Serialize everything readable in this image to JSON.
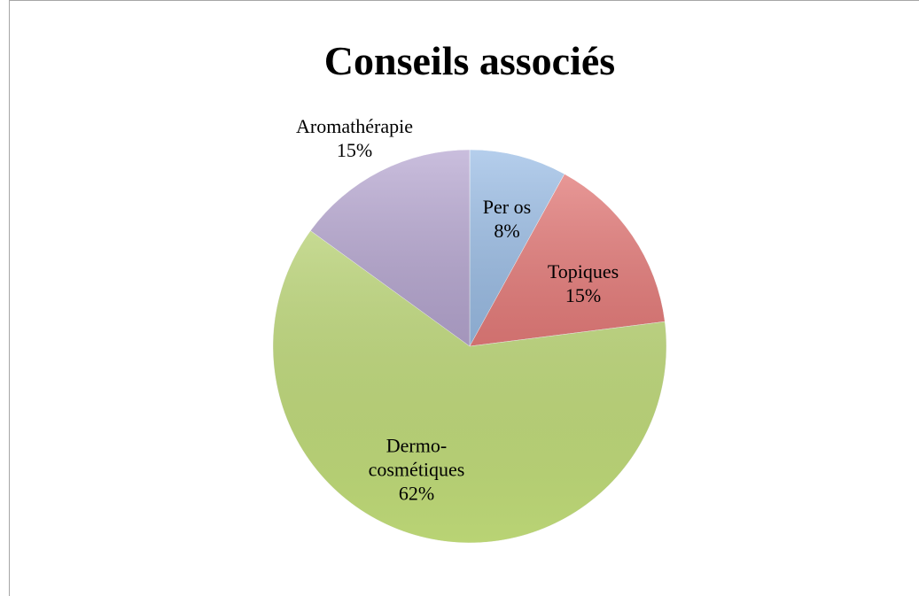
{
  "chart_data": {
    "type": "pie",
    "title": "Conseils associés",
    "categories": [
      "Per os",
      "Topiques",
      "Dermo-cosmétiques",
      "Aromathérapie"
    ],
    "values": [
      8,
      15,
      62,
      15
    ],
    "value_labels": [
      "8%",
      "15%",
      "62%",
      "15%"
    ],
    "colors": [
      "#8db4e2",
      "#e46c6a",
      "#c5e17c",
      "#ad9bcb"
    ]
  }
}
